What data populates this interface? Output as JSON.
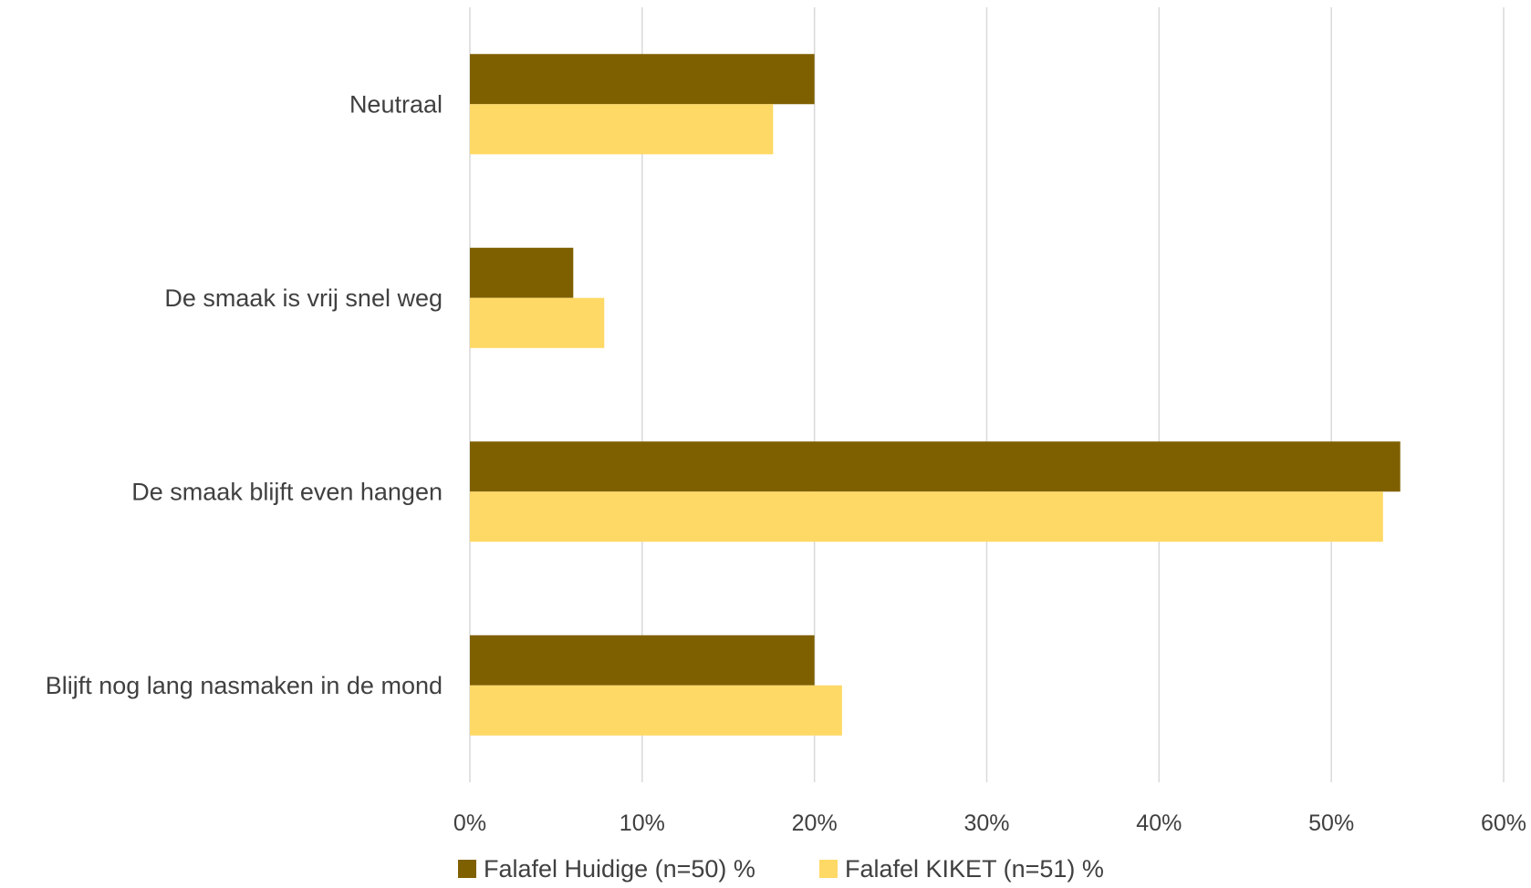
{
  "chart_data": {
    "type": "bar",
    "orientation": "horizontal",
    "categories": [
      "Neutraal",
      "De smaak is vrij snel weg",
      "De smaak blijft even hangen",
      "Blijft nog lang nasmaken in de mond"
    ],
    "series": [
      {
        "name": "Falafel Huidige (n=50) %",
        "color": "#7f6000",
        "values": [
          20,
          6,
          54,
          20
        ]
      },
      {
        "name": "Falafel KIKET (n=51) %",
        "color": "#ffd966",
        "values": [
          17.6,
          7.8,
          53,
          21.6
        ]
      }
    ],
    "x_ticks": [
      "0%",
      "10%",
      "20%",
      "30%",
      "40%",
      "50%",
      "60%"
    ],
    "xlim": [
      0,
      60
    ],
    "grid": true,
    "legend_position": "bottom"
  }
}
